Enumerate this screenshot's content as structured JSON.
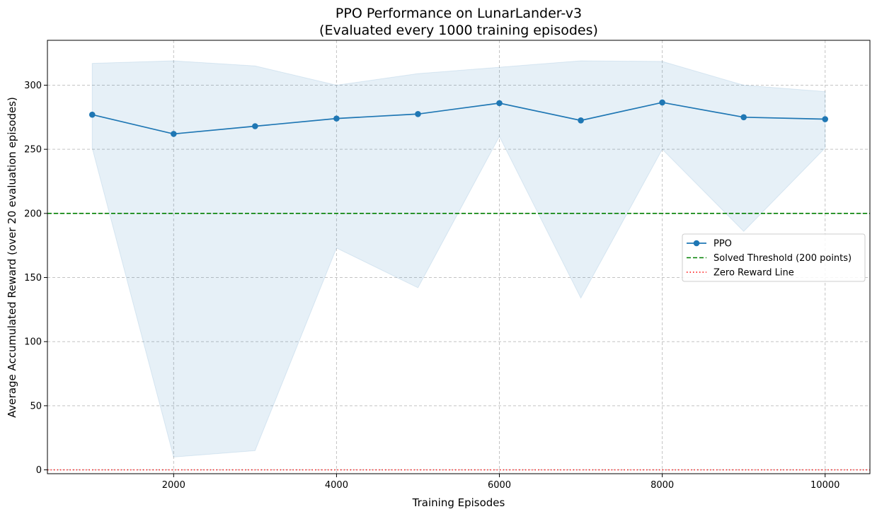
{
  "chart_data": {
    "type": "line",
    "title": "PPO Performance on LunarLander-v3",
    "subtitle": "(Evaluated every 1000 training episodes)",
    "xlabel": "Training Episodes",
    "ylabel": "Average Accumulated Reward (over 20 evaluation episodes)",
    "xlim": [
      450,
      10550
    ],
    "ylim": [
      -3,
      335
    ],
    "xticks": [
      2000,
      4000,
      6000,
      8000,
      10000
    ],
    "yticks": [
      0,
      50,
      100,
      150,
      200,
      250,
      300
    ],
    "grid": true,
    "legend_position": "center-right",
    "series": [
      {
        "name": "PPO",
        "color": "#1f77b4",
        "marker": "circle",
        "x": [
          1000,
          2000,
          3000,
          4000,
          5000,
          6000,
          7000,
          8000,
          9000,
          10000
        ],
        "y": [
          277,
          262,
          268,
          274,
          277.5,
          286,
          272.5,
          286.5,
          275,
          273.5
        ],
        "band_upper": [
          317,
          319,
          315,
          300,
          309,
          314,
          319,
          318.5,
          300,
          295
        ],
        "band_lower": [
          251,
          10,
          15,
          173,
          142,
          260,
          134,
          250,
          186,
          251
        ],
        "band_color": "#1f77b4"
      }
    ],
    "reference_lines": [
      {
        "name": "Solved Threshold (200 points)",
        "y": 200,
        "color": "#008000",
        "style": "dashed"
      },
      {
        "name": "Zero Reward Line",
        "y": 0,
        "color": "#ff0000",
        "style": "dotted"
      }
    ]
  }
}
